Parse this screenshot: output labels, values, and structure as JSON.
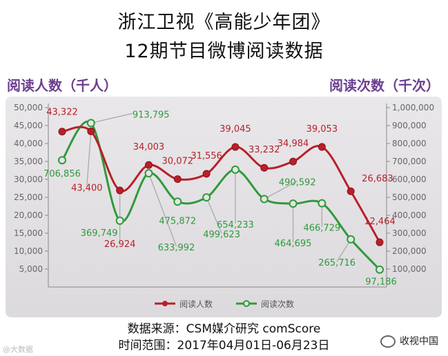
{
  "header": {
    "title_line1": "浙江卫视《高能少年团》",
    "title_line2": "12期节目微博阅读数据"
  },
  "axis_titles": {
    "left": "阅读人数（千人）",
    "right": "阅读次数（千次）"
  },
  "footer": {
    "source": "数据来源：CSM媒介研究 comScore",
    "date_range": "时间范围：2017年04月01日-06月23日",
    "watermark_right": "收视中国",
    "watermark_left": "@大数据"
  },
  "colors": {
    "readers": "#b8202a",
    "reads": "#2f9a3a"
  },
  "chart_data": {
    "type": "line",
    "x": [
      1,
      2,
      3,
      4,
      5,
      6,
      7,
      8,
      9,
      10,
      11,
      12
    ],
    "series": [
      {
        "name": "阅读人数",
        "axis": "left",
        "values": [
          43322,
          43400,
          26924,
          34003,
          30072,
          31556,
          39045,
          33232,
          34984,
          39053,
          26683,
          12464
        ],
        "labels": [
          "43,322",
          "43,400",
          "26,924",
          "34,003",
          "30,072",
          "31,556",
          "39,045",
          "33,232",
          "34,984",
          "39,053",
          "26,683",
          "12,464"
        ]
      },
      {
        "name": "阅读次数",
        "axis": "right",
        "values": [
          706856,
          913795,
          369749,
          633992,
          475872,
          499623,
          654233,
          490592,
          464695,
          466729,
          265716,
          97186
        ],
        "labels": [
          "706,856",
          "913,795",
          "369,749",
          "633,992",
          "475,872",
          "499,623",
          "654,233",
          "490,592",
          "464,695",
          "466,729",
          "265,716",
          "97,186"
        ]
      }
    ],
    "y_left": {
      "ylim": [
        0,
        50000
      ],
      "ticks": [
        "5,000",
        "10,000",
        "15,000",
        "20,000",
        "25,000",
        "30,000",
        "35,000",
        "40,000",
        "45,000",
        "50,000"
      ]
    },
    "y_right": {
      "ylim": [
        0,
        1000000
      ],
      "ticks": [
        "100,000",
        "200,000",
        "300,000",
        "400,000",
        "500,000",
        "600,000",
        "700,000",
        "800,000",
        "900,000",
        "1,000,000"
      ]
    },
    "legend": [
      "阅读人数",
      "阅读次数"
    ],
    "legend_position": "bottom",
    "grid": false
  }
}
